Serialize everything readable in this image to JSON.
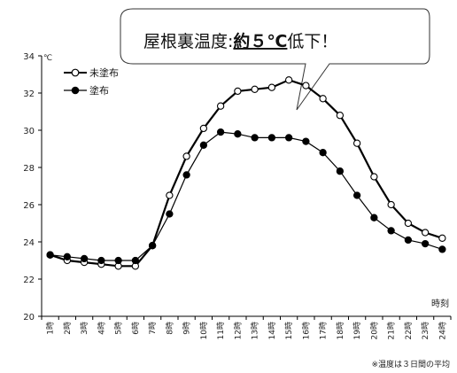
{
  "chart_data": {
    "type": "line",
    "unit": "℃",
    "xlabel": "時刻",
    "ylim": [
      20,
      34
    ],
    "yticks": [
      20,
      22,
      24,
      26,
      28,
      30,
      32,
      34
    ],
    "categories": [
      "1時",
      "2時",
      "3時",
      "4時",
      "5時",
      "6時",
      "7時",
      "8時",
      "9時",
      "10時",
      "11時",
      "12時",
      "13時",
      "14時",
      "15時",
      "16時",
      "17時",
      "18時",
      "19時",
      "20時",
      "21時",
      "22時",
      "23時",
      "24時"
    ],
    "series": [
      {
        "name": "未塗布",
        "marker": "open-circle",
        "color": "#000000",
        "values": [
          23.3,
          23.0,
          22.9,
          22.8,
          22.7,
          22.7,
          23.8,
          26.5,
          28.6,
          30.1,
          31.3,
          32.1,
          32.2,
          32.3,
          32.7,
          32.4,
          31.7,
          30.8,
          29.3,
          27.5,
          26.0,
          25.0,
          24.5,
          24.2
        ]
      },
      {
        "name": "塗布",
        "marker": "filled-circle",
        "color": "#000000",
        "values": [
          23.3,
          23.2,
          23.1,
          23.0,
          23.0,
          23.0,
          23.8,
          25.5,
          27.6,
          29.2,
          29.9,
          29.8,
          29.6,
          29.6,
          29.6,
          29.4,
          28.8,
          27.8,
          26.5,
          25.3,
          24.6,
          24.1,
          23.9,
          23.6
        ]
      }
    ],
    "legend_position": "top-left",
    "grid": false
  },
  "callout": {
    "prefix": "屋根裏温度:",
    "emphasis": "約５℃",
    "suffix": "低下！"
  },
  "footnote": "※温度は３日間の平均"
}
